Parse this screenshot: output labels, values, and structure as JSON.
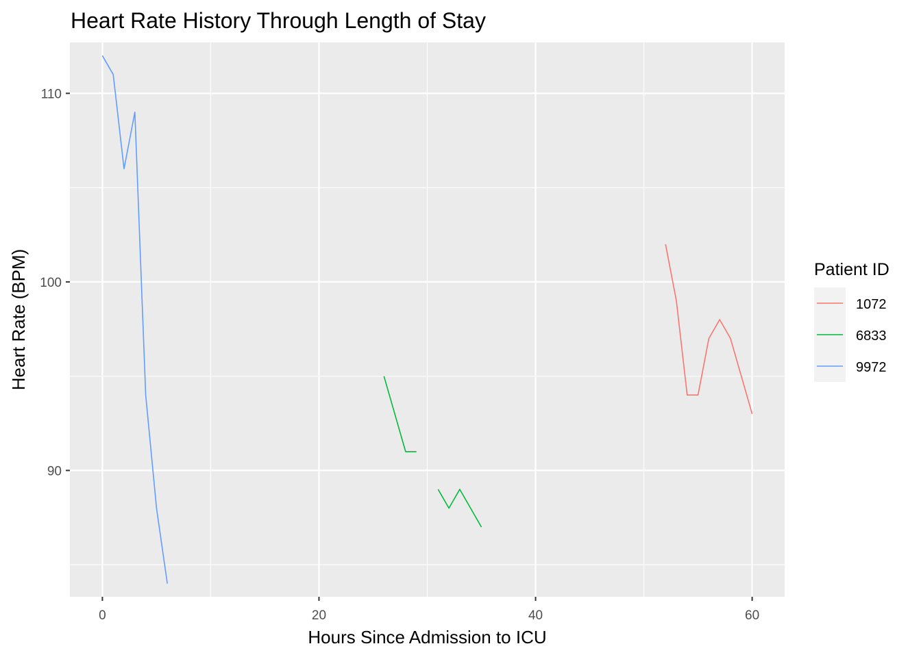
{
  "chart_data": {
    "type": "line",
    "title": "Heart Rate History Through Length of Stay",
    "xlabel": "Hours Since Admission to ICU",
    "ylabel": "Heart Rate (BPM)",
    "xlim": [
      -3,
      63
    ],
    "ylim": [
      83.3,
      112.7
    ],
    "x_ticks": [
      0,
      20,
      40,
      60
    ],
    "y_ticks": [
      90,
      100,
      110
    ],
    "grid": true,
    "legend": {
      "title": "Patient ID",
      "position": "right"
    },
    "series": [
      {
        "name": "1072",
        "color": "#F8766D",
        "segments": [
          {
            "x": [
              52,
              53,
              54,
              55,
              56,
              57,
              58,
              59,
              60
            ],
            "y": [
              102,
              99,
              94,
              94,
              97,
              98,
              97,
              95,
              93
            ]
          }
        ]
      },
      {
        "name": "6833",
        "color": "#00BA38",
        "segments": [
          {
            "x": [
              26,
              27,
              28,
              29
            ],
            "y": [
              95,
              93,
              91,
              91
            ]
          },
          {
            "x": [
              31,
              32,
              33,
              34,
              35
            ],
            "y": [
              89,
              88,
              89,
              88,
              87
            ]
          }
        ]
      },
      {
        "name": "9972",
        "color": "#619CFF",
        "segments": [
          {
            "x": [
              0,
              1,
              2,
              3,
              4,
              5,
              6
            ],
            "y": [
              112,
              111,
              106,
              109,
              94,
              88,
              84
            ]
          }
        ]
      }
    ]
  }
}
